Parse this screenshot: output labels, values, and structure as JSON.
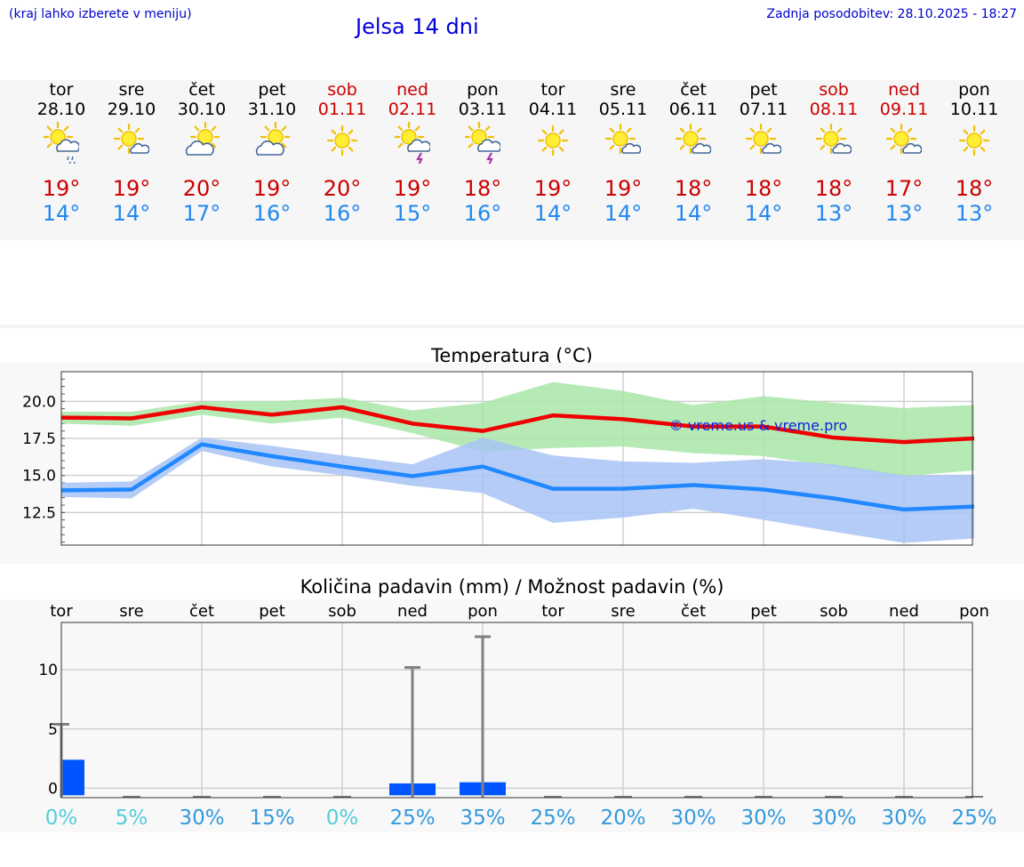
{
  "header": {
    "note": "(kraj lahko izberete v meniju)",
    "title": "Jelsa 14 dni",
    "updated": "Zadnja posodobitev: 28.10.2025 - 18:27"
  },
  "colors": {
    "max": "#ee0000",
    "min": "#2288ff",
    "max_band": "#a8e6a8",
    "min_band": "#a8c4f4",
    "weekend": "#cc0000",
    "bar": "#0055ff"
  },
  "days": [
    {
      "name": "tor",
      "date": "28.10",
      "weekend": false,
      "icon": "sun-cloud-rain-icon",
      "max": "19°",
      "min": "14°"
    },
    {
      "name": "sre",
      "date": "29.10",
      "weekend": false,
      "icon": "sun-small-cloud-icon",
      "max": "19°",
      "min": "14°"
    },
    {
      "name": "čet",
      "date": "30.10",
      "weekend": false,
      "icon": "sun-cloud-icon",
      "max": "20°",
      "min": "17°"
    },
    {
      "name": "pet",
      "date": "31.10",
      "weekend": false,
      "icon": "sun-cloud-icon",
      "max": "19°",
      "min": "16°"
    },
    {
      "name": "sob",
      "date": "01.11",
      "weekend": true,
      "icon": "sun-icon",
      "max": "20°",
      "min": "16°"
    },
    {
      "name": "ned",
      "date": "02.11",
      "weekend": true,
      "icon": "sun-thunderstorm-icon",
      "max": "19°",
      "min": "15°"
    },
    {
      "name": "pon",
      "date": "03.11",
      "weekend": false,
      "icon": "sun-thunderstorm-icon",
      "max": "18°",
      "min": "16°"
    },
    {
      "name": "tor",
      "date": "04.11",
      "weekend": false,
      "icon": "sun-icon",
      "max": "19°",
      "min": "14°"
    },
    {
      "name": "sre",
      "date": "05.11",
      "weekend": false,
      "icon": "sun-small-cloud-icon",
      "max": "19°",
      "min": "14°"
    },
    {
      "name": "čet",
      "date": "06.11",
      "weekend": false,
      "icon": "sun-small-cloud-icon",
      "max": "18°",
      "min": "14°"
    },
    {
      "name": "pet",
      "date": "07.11",
      "weekend": false,
      "icon": "sun-small-cloud-icon",
      "max": "18°",
      "min": "14°"
    },
    {
      "name": "sob",
      "date": "08.11",
      "weekend": true,
      "icon": "sun-small-cloud-icon",
      "max": "18°",
      "min": "13°"
    },
    {
      "name": "ned",
      "date": "09.11",
      "weekend": true,
      "icon": "sun-small-cloud-icon",
      "max": "17°",
      "min": "13°"
    },
    {
      "name": "pon",
      "date": "10.11",
      "weekend": false,
      "icon": "sun-icon",
      "max": "18°",
      "min": "13°"
    }
  ],
  "chart_data": [
    {
      "type": "line",
      "title": "Temperatura (°C)",
      "watermark": "© vreme.us & vreme.pro",
      "x": [
        "tor",
        "sre",
        "čet",
        "pet",
        "sob",
        "ned",
        "pon",
        "tor",
        "sre",
        "čet",
        "pet",
        "sob",
        "ned",
        "pon"
      ],
      "ylim": [
        10.3,
        22
      ],
      "yticks": [
        "12.5",
        "15.0",
        "17.5",
        "20.0"
      ],
      "series": [
        {
          "key": "max",
          "values": [
            18.9,
            18.85,
            19.6,
            19.1,
            19.6,
            18.5,
            18.0,
            19.05,
            18.8,
            18.3,
            18.3,
            17.55,
            17.25,
            17.5
          ]
        },
        {
          "key": "max_low",
          "values": [
            18.5,
            18.35,
            19.1,
            18.5,
            18.9,
            17.85,
            16.6,
            16.85,
            16.95,
            16.5,
            16.3,
            15.6,
            14.95,
            15.35
          ]
        },
        {
          "key": "max_high",
          "values": [
            19.3,
            19.3,
            20.0,
            20.0,
            20.25,
            19.4,
            19.9,
            21.3,
            20.7,
            19.75,
            20.35,
            19.9,
            19.55,
            19.75
          ]
        },
        {
          "key": "min",
          "values": [
            14.0,
            14.05,
            17.1,
            16.3,
            15.6,
            14.95,
            15.6,
            14.1,
            14.1,
            14.35,
            14.05,
            13.45,
            12.7,
            12.9
          ]
        },
        {
          "key": "min_low",
          "values": [
            13.55,
            13.45,
            16.65,
            15.6,
            15.0,
            14.3,
            13.8,
            11.8,
            12.15,
            12.75,
            12.0,
            11.2,
            10.45,
            10.75
          ]
        },
        {
          "key": "min_high",
          "values": [
            14.5,
            14.6,
            17.55,
            17.0,
            16.35,
            15.75,
            17.55,
            16.35,
            15.95,
            15.85,
            16.1,
            15.75,
            15.0,
            15.05
          ]
        }
      ],
      "grid": true
    },
    {
      "type": "bar",
      "title": "Količina padavin (mm) / Možnost padavin (%)",
      "categories": [
        "tor",
        "sre",
        "čet",
        "pet",
        "sob",
        "ned",
        "pon",
        "tor",
        "sre",
        "čet",
        "pet",
        "sob",
        "ned",
        "pon"
      ],
      "ylim": [
        -0.8,
        14
      ],
      "yticks": [
        "0",
        "5",
        "10"
      ],
      "values": [
        2.4,
        0,
        0,
        0,
        0,
        0.4,
        0.5,
        0,
        0,
        0,
        0,
        0,
        0,
        0
      ],
      "max_values": [
        5.4,
        0,
        0,
        0,
        0,
        10.2,
        12.8,
        0,
        0,
        0,
        0,
        0,
        0,
        0
      ],
      "probability": [
        "0%",
        "5%",
        "30%",
        "15%",
        "0%",
        "25%",
        "35%",
        "25%",
        "20%",
        "30%",
        "30%",
        "30%",
        "30%",
        "25%"
      ],
      "grid": true
    }
  ]
}
